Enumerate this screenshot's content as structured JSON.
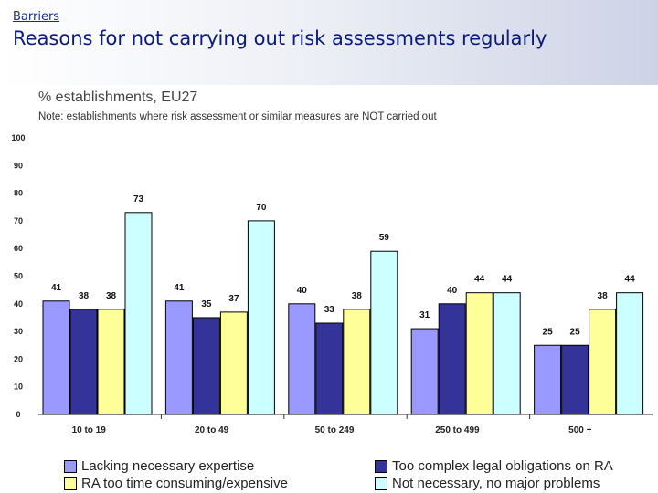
{
  "header": {
    "kicker": "Barriers",
    "title": "Reasons for not carrying out risk assessments regularly"
  },
  "chart_data": {
    "type": "bar",
    "title": "% establishments, EU27",
    "note": "Note: establishments where risk assessment or similar measures are NOT carried out",
    "xlabel": "",
    "ylabel": "",
    "ylim": [
      0,
      100
    ],
    "yticks": [
      "0",
      "10",
      "20",
      "30",
      "40",
      "50",
      "60",
      "70",
      "80",
      "90",
      "100"
    ],
    "categories": [
      "10 to 19",
      "20 to 49",
      "50 to 249",
      "250 to 499",
      "500 +"
    ],
    "series": [
      {
        "name": "Lacking necessary expertise",
        "color": "#9999ff",
        "values": [
          41,
          41,
          40,
          31,
          25
        ]
      },
      {
        "name": "Too complex legal obligations on RA",
        "color": "#333399",
        "values": [
          38,
          35,
          33,
          40,
          25
        ]
      },
      {
        "name": "RA too time consuming/expensive",
        "color": "#ffff99",
        "values": [
          38,
          37,
          38,
          44,
          38
        ]
      },
      {
        "name": "Not necessary, no major problems",
        "color": "#ccffff",
        "values": [
          73,
          70,
          59,
          44,
          44
        ]
      }
    ],
    "legend_position": "bottom",
    "grid": false
  }
}
